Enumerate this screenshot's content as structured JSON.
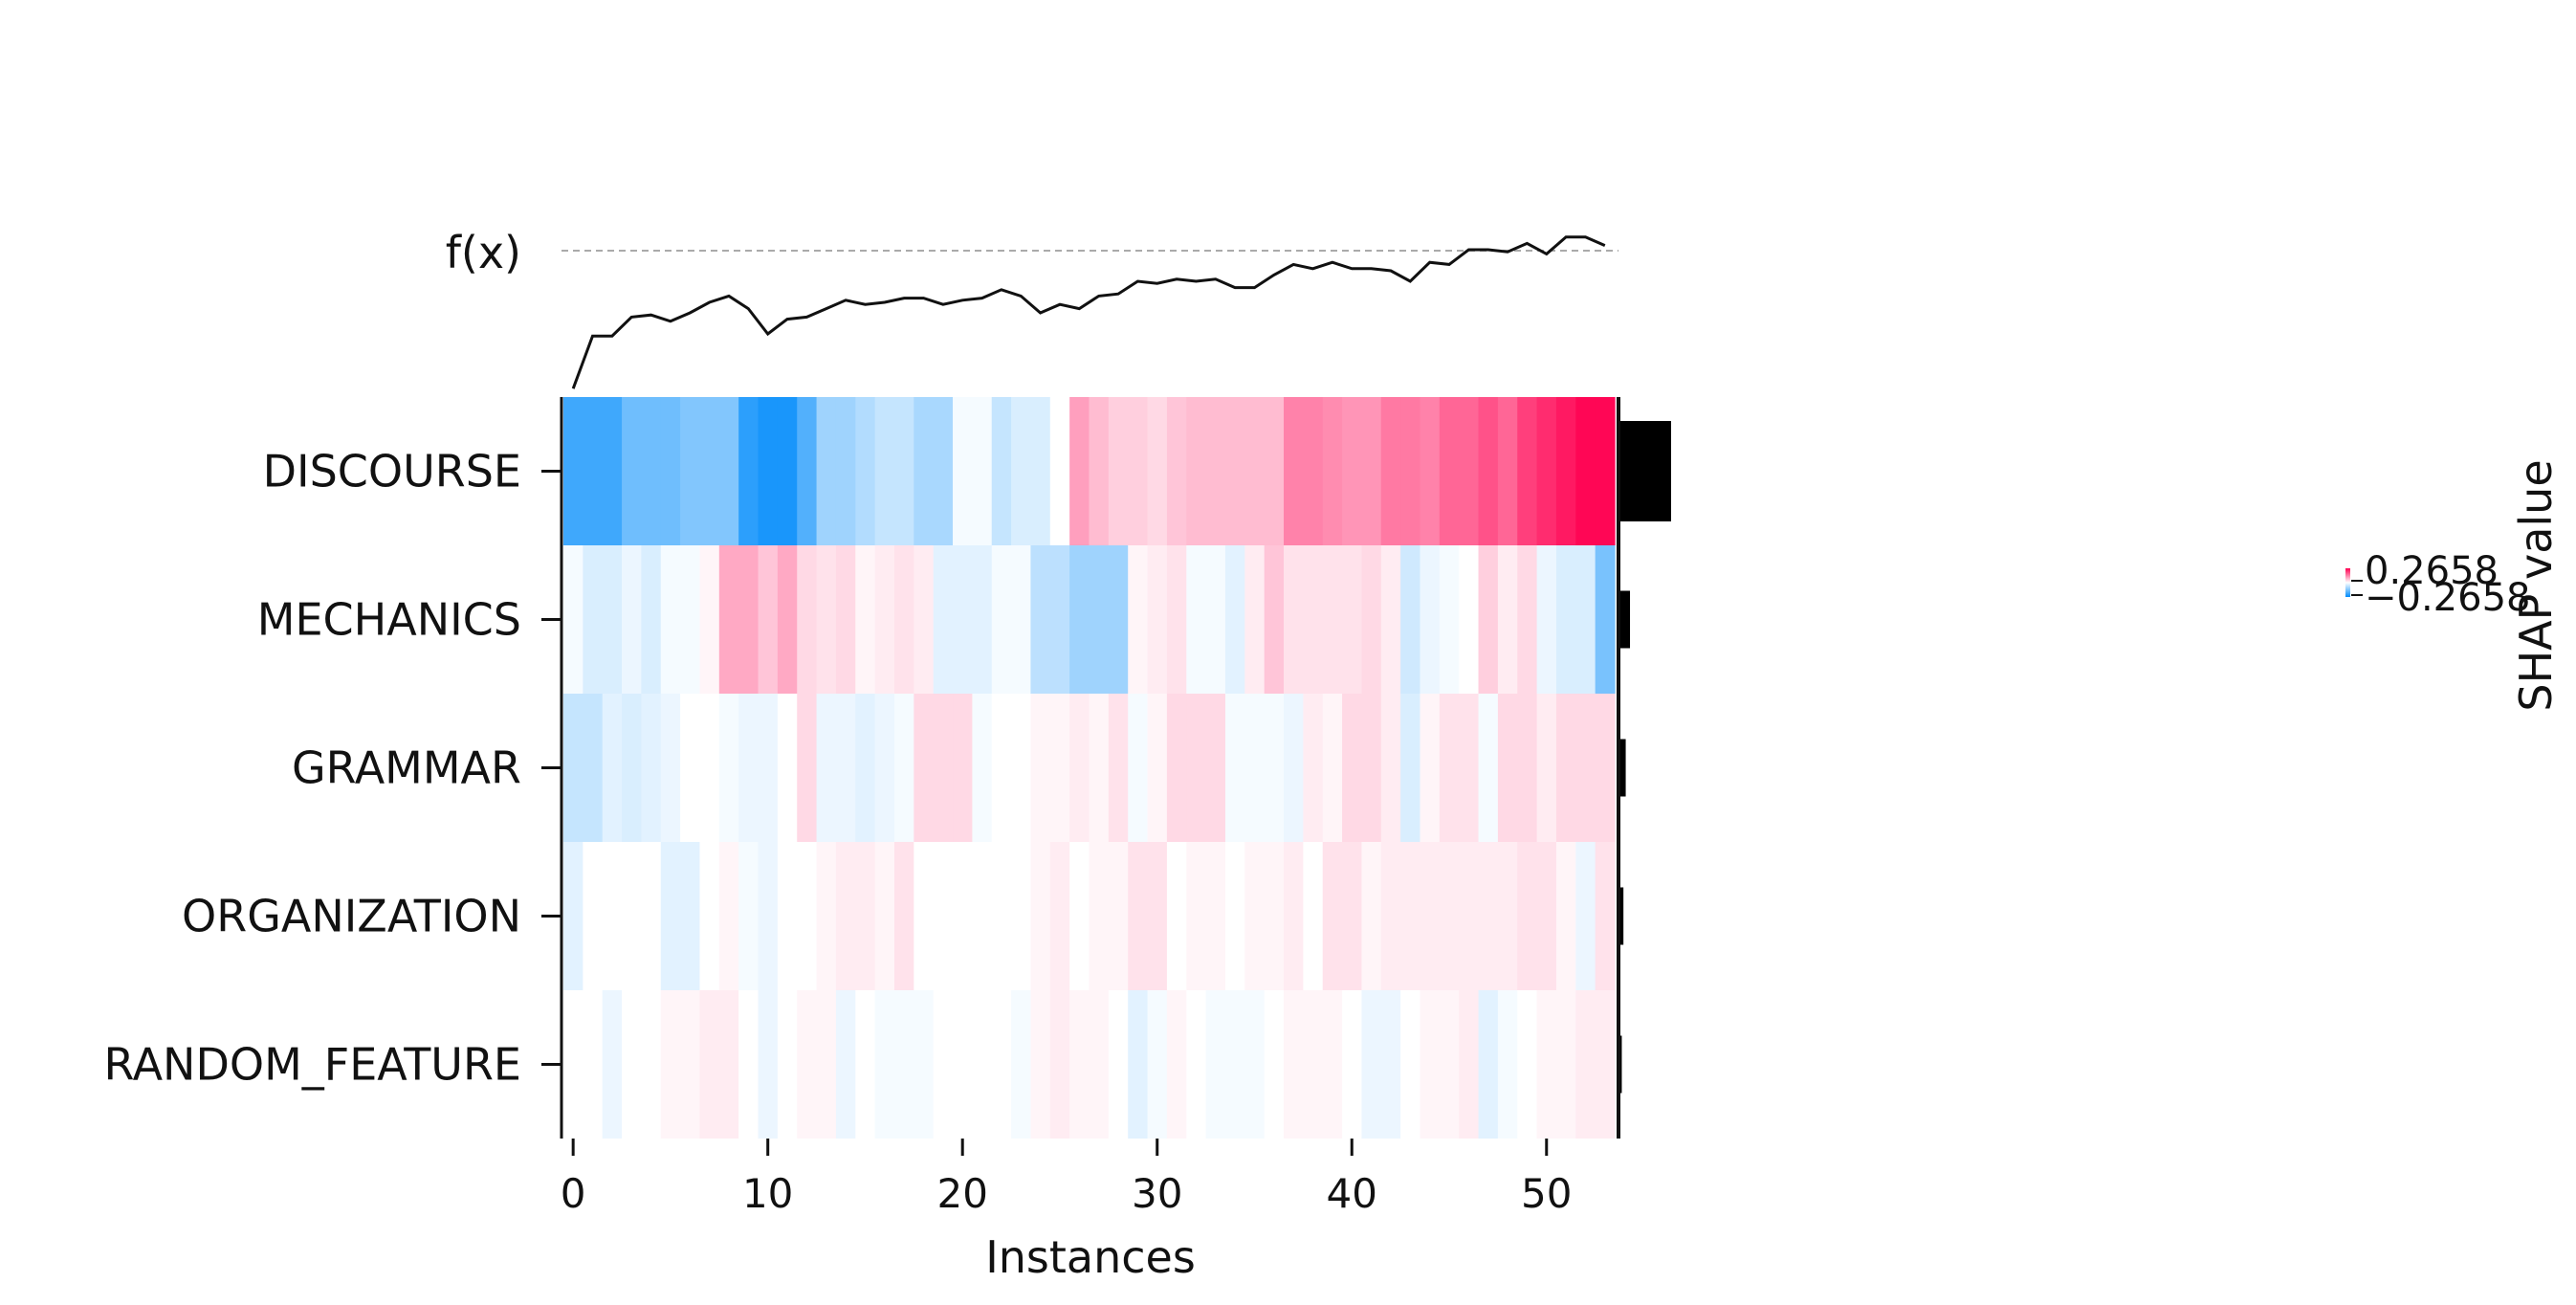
{
  "chart_data": {
    "type": "heatmap",
    "title": "",
    "xlabel": "Instances",
    "fx_label": "f(x)",
    "colorbar": {
      "label": "SHAP value",
      "max_label": "0.2658",
      "min_label": "−0.2658",
      "vmin": -0.2658,
      "vmax": 0.2658
    },
    "x_ticks": [
      "0",
      "10",
      "20",
      "30",
      "40",
      "50"
    ],
    "x_tick_values": [
      0,
      10,
      20,
      30,
      40,
      50
    ],
    "features": [
      "DISCOURSE",
      "MECHANICS",
      "GRAMMAR",
      "ORGANIZATION",
      "RANDOM_FEATURE"
    ],
    "importance": [
      0.16,
      0.035,
      0.022,
      0.015,
      0.01
    ],
    "fx": [
      0.04,
      0.29,
      0.29,
      0.38,
      0.39,
      0.36,
      0.4,
      0.45,
      0.48,
      0.42,
      0.3,
      0.37,
      0.38,
      0.42,
      0.46,
      0.44,
      0.45,
      0.47,
      0.47,
      0.44,
      0.46,
      0.47,
      0.51,
      0.48,
      0.4,
      0.44,
      0.42,
      0.48,
      0.49,
      0.55,
      0.54,
      0.56,
      0.55,
      0.56,
      0.52,
      0.52,
      0.58,
      0.63,
      0.61,
      0.64,
      0.61,
      0.61,
      0.6,
      0.55,
      0.64,
      0.63,
      0.7,
      0.7,
      0.69,
      0.73,
      0.68,
      0.76,
      0.76,
      0.72
    ],
    "shap_values": [
      [
        -0.2,
        -0.2,
        -0.2,
        -0.15,
        -0.15,
        -0.15,
        -0.13,
        -0.13,
        -0.13,
        -0.22,
        -0.24,
        -0.24,
        -0.18,
        -0.1,
        -0.1,
        -0.08,
        -0.06,
        -0.06,
        -0.09,
        -0.09,
        -0.01,
        -0.01,
        -0.06,
        -0.04,
        -0.04,
        0.0,
        0.1,
        0.07,
        0.05,
        0.05,
        0.04,
        0.06,
        0.07,
        0.07,
        0.07,
        0.07,
        0.07,
        0.13,
        0.13,
        0.12,
        0.11,
        0.11,
        0.14,
        0.14,
        0.13,
        0.16,
        0.16,
        0.18,
        0.16,
        0.2,
        0.22,
        0.24,
        0.26,
        0.26
      ],
      [
        -0.01,
        -0.04,
        -0.04,
        -0.02,
        -0.04,
        -0.01,
        -0.01,
        0.01,
        0.09,
        0.09,
        0.06,
        0.09,
        0.04,
        0.03,
        0.04,
        0.01,
        0.02,
        0.03,
        0.02,
        -0.03,
        -0.03,
        -0.03,
        -0.01,
        -0.01,
        -0.07,
        -0.07,
        -0.1,
        -0.1,
        -0.1,
        0.01,
        0.02,
        0.03,
        -0.01,
        -0.01,
        -0.03,
        0.02,
        0.06,
        0.03,
        0.03,
        0.03,
        0.03,
        0.04,
        0.02,
        -0.05,
        -0.02,
        -0.01,
        0.0,
        0.05,
        0.02,
        0.04,
        -0.02,
        -0.04,
        -0.04,
        -0.14
      ],
      [
        -0.06,
        -0.06,
        -0.03,
        -0.04,
        -0.03,
        -0.02,
        0.0,
        0.0,
        -0.01,
        -0.02,
        -0.02,
        0.0,
        0.04,
        -0.02,
        -0.02,
        -0.03,
        -0.02,
        -0.01,
        0.04,
        0.04,
        0.04,
        -0.01,
        0.0,
        0.0,
        0.01,
        0.01,
        0.02,
        0.01,
        0.03,
        -0.01,
        0.01,
        0.04,
        0.04,
        0.04,
        -0.01,
        -0.01,
        -0.01,
        -0.02,
        0.02,
        0.01,
        0.04,
        0.04,
        0.02,
        -0.04,
        0.01,
        0.03,
        0.03,
        -0.01,
        0.04,
        0.04,
        0.02,
        0.04,
        0.04,
        0.04
      ],
      [
        -0.03,
        0.0,
        0.0,
        0.0,
        0.0,
        -0.03,
        -0.03,
        0.0,
        0.01,
        -0.01,
        -0.02,
        0.0,
        0.0,
        0.01,
        0.02,
        0.02,
        0.01,
        0.03,
        0.0,
        0.0,
        0.0,
        0.0,
        0.0,
        0.0,
        0.01,
        0.02,
        0.0,
        0.01,
        0.01,
        0.03,
        0.03,
        0.0,
        0.01,
        0.01,
        0.0,
        0.01,
        0.01,
        0.02,
        0.0,
        0.03,
        0.03,
        0.01,
        0.02,
        0.02,
        0.02,
        0.02,
        0.02,
        0.02,
        0.02,
        0.03,
        0.03,
        0.01,
        -0.02,
        0.03
      ],
      [
        0.0,
        0.0,
        -0.02,
        0.0,
        0.0,
        0.01,
        0.01,
        0.02,
        0.02,
        0.0,
        -0.02,
        0.0,
        0.01,
        0.01,
        -0.02,
        0.0,
        -0.01,
        -0.01,
        -0.01,
        0.0,
        0.0,
        0.0,
        0.0,
        -0.01,
        0.01,
        0.02,
        0.01,
        0.01,
        0.0,
        -0.03,
        -0.01,
        0.01,
        0.0,
        -0.01,
        -0.01,
        -0.01,
        0.0,
        0.01,
        0.01,
        0.01,
        0.0,
        -0.02,
        -0.02,
        0.0,
        0.01,
        0.01,
        0.02,
        -0.03,
        -0.01,
        0.0,
        0.01,
        0.01,
        0.02,
        0.02
      ]
    ]
  }
}
